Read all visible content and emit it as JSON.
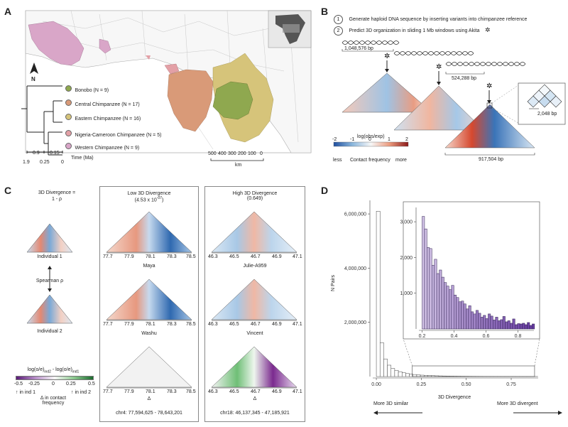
{
  "panelA": {
    "label": "A",
    "north": "N",
    "legend": [
      {
        "name": "Bonobo (N = 9)",
        "color": "#8fa84f"
      },
      {
        "name": "Central Chimpanzee (N = 17)",
        "color": "#d99a78"
      },
      {
        "name": "Eastern Chimpanzee (N = 16)",
        "color": "#d6c47a"
      },
      {
        "name": "Nigeria-Cameroon Chimpanzee (N = 5)",
        "color": "#e3a0a6"
      },
      {
        "name": "Western Chimpanzee (N = 9)",
        "color": "#d9a6c8"
      }
    ],
    "time_ticks_top": [
      "0.9",
      "0.15"
    ],
    "time_ticks_bottom": [
      "1.9",
      "0.25",
      "0"
    ],
    "time_label": "Time (Ma)",
    "scale_ticks": [
      "500",
      "400",
      "300",
      "200",
      "100",
      "0"
    ],
    "scale_unit": "km"
  },
  "panelB": {
    "label": "B",
    "steps": [
      {
        "num": "1",
        "text": "Generate haploid DNA sequence by inserting variants into chimpanzee reference"
      },
      {
        "num": "2",
        "text": "Predict 3D organization in sliding 1 Mb windows using Akita"
      }
    ],
    "size1": "1,048,576 bp",
    "size2": "524,288 bp",
    "size3": "917,504 bp",
    "size4": "2,048 bp",
    "colorbar_title": "log(obs/exp)",
    "colorbar_ticks": [
      "-2",
      "-1",
      "0",
      "1",
      "2"
    ],
    "colorbar_less": "less",
    "colorbar_more": "more",
    "colorbar_caption": "Contact frequency"
  },
  "panelC": {
    "label": "C",
    "div_title": "3D Divergence =",
    "div_formula": "1 - ρ",
    "ind1": "Individual 1",
    "ind2": "Individual 2",
    "spearman": "Spearman ρ",
    "low_title": "Low 3D Divergence",
    "low_value": "(4.53 x 10",
    "low_exp": "-07",
    "low_close": ")",
    "high_title": "High 3D Divergence",
    "high_value": "(0.649)",
    "low_ticks": [
      "77.7",
      "77.9",
      "78.1",
      "78.3",
      "78.5"
    ],
    "high_ticks": [
      "46.3",
      "46.5",
      "46.7",
      "46.9",
      "47.1"
    ],
    "low_names": [
      "Maya",
      "Washu",
      "Δ"
    ],
    "high_names": [
      "Julie-A959",
      "Vincent",
      "Δ"
    ],
    "low_region": "chr4: 77,594,625 - 78,643,201",
    "high_region": "chr18: 46,137,345 - 47,185,921",
    "cb_title_a": "log(o/e)",
    "cb_sub_a": "ind2",
    "cb_title_b": " - log(o/e)",
    "cb_sub_b": "ind1",
    "cb_ticks": [
      "-0.5",
      "-0.25",
      "0",
      "0.25",
      "0.5"
    ],
    "cb_left": "↑ in ind 1",
    "cb_right": "↑ in ind 2",
    "cb_caption1": "Δ in contact",
    "cb_caption2": "frequency"
  },
  "panelD": {
    "label": "D",
    "ylabel": "N Pairs",
    "xlabel": "3D Divergence",
    "arrow_left": "More 3D similar",
    "arrow_right": "More 3D divergent",
    "chart_data": [
      {
        "type": "bar",
        "title": "",
        "xlabel": "3D Divergence",
        "ylabel": "N Pairs",
        "x_ticks": [
          "0.00",
          "0.25",
          "0.50",
          "0.75"
        ],
        "y_ticks": [
          "2,000,000",
          "4,000,000",
          "6,000,000"
        ],
        "xlim": [
          -0.02,
          0.9
        ],
        "ylim": [
          0,
          6500000
        ],
        "bin_width": 0.0204,
        "values": [
          6100000,
          1250000,
          650000,
          420000,
          300000,
          230000,
          180000,
          140000,
          110000,
          90000,
          75000,
          62000,
          52000,
          45000,
          38000,
          33000,
          28000,
          24000,
          21000,
          18000,
          16000,
          14000,
          12500,
          11000,
          10000,
          9000,
          8200,
          7500,
          6900,
          6300,
          5800,
          5300,
          4900,
          4500,
          4100,
          3800,
          3500,
          3200,
          3000,
          2800,
          2600,
          2400,
          2200,
          2000
        ]
      },
      {
        "type": "bar",
        "title": "inset",
        "x_ticks": [
          "0.2",
          "0.4",
          "0.6",
          "0.8"
        ],
        "y_ticks": [
          "1,000",
          "2,000",
          "3,000"
        ],
        "xlim": [
          0.18,
          0.9
        ],
        "ylim": [
          0,
          3400
        ],
        "x_start": 0.2,
        "bin_width": 0.0153,
        "values": [
          3150,
          2800,
          2280,
          2250,
          1780,
          1950,
          1550,
          1650,
          1450,
          1300,
          1200,
          1100,
          1220,
          950,
          880,
          760,
          780,
          700,
          560,
          650,
          480,
          420,
          520,
          440,
          330,
          380,
          290,
          420,
          360,
          250,
          330,
          230,
          260,
          350,
          200,
          230,
          160,
          280,
          120,
          150,
          140,
          160,
          120,
          180,
          100,
          140
        ]
      }
    ]
  }
}
